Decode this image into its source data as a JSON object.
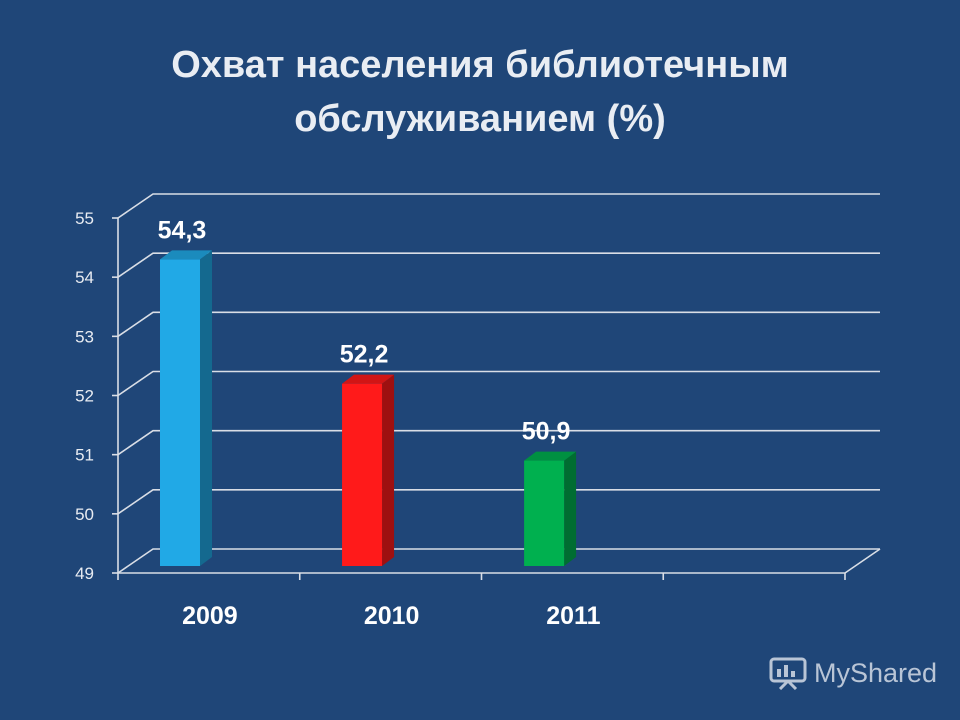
{
  "chart_data": {
    "type": "bar",
    "title_lines": [
      "Охват населения библиотечным",
      "обслуживанием  (%)"
    ],
    "categories": [
      "2009",
      "2010",
      "2011"
    ],
    "values": [
      54.3,
      52.2,
      50.9
    ],
    "value_labels": [
      "54,3",
      "52,2",
      "50,9"
    ],
    "bar_colors": [
      "#21a9e6",
      "#ff1a1a",
      "#00b04f"
    ],
    "ylim": [
      49,
      55
    ],
    "y_ticks": [
      "49",
      "50",
      "51",
      "52",
      "53",
      "54",
      "55"
    ],
    "grid": true,
    "style": "3d-column"
  },
  "watermark": {
    "text": "MyShared",
    "icon": "presentation-board-icon"
  }
}
